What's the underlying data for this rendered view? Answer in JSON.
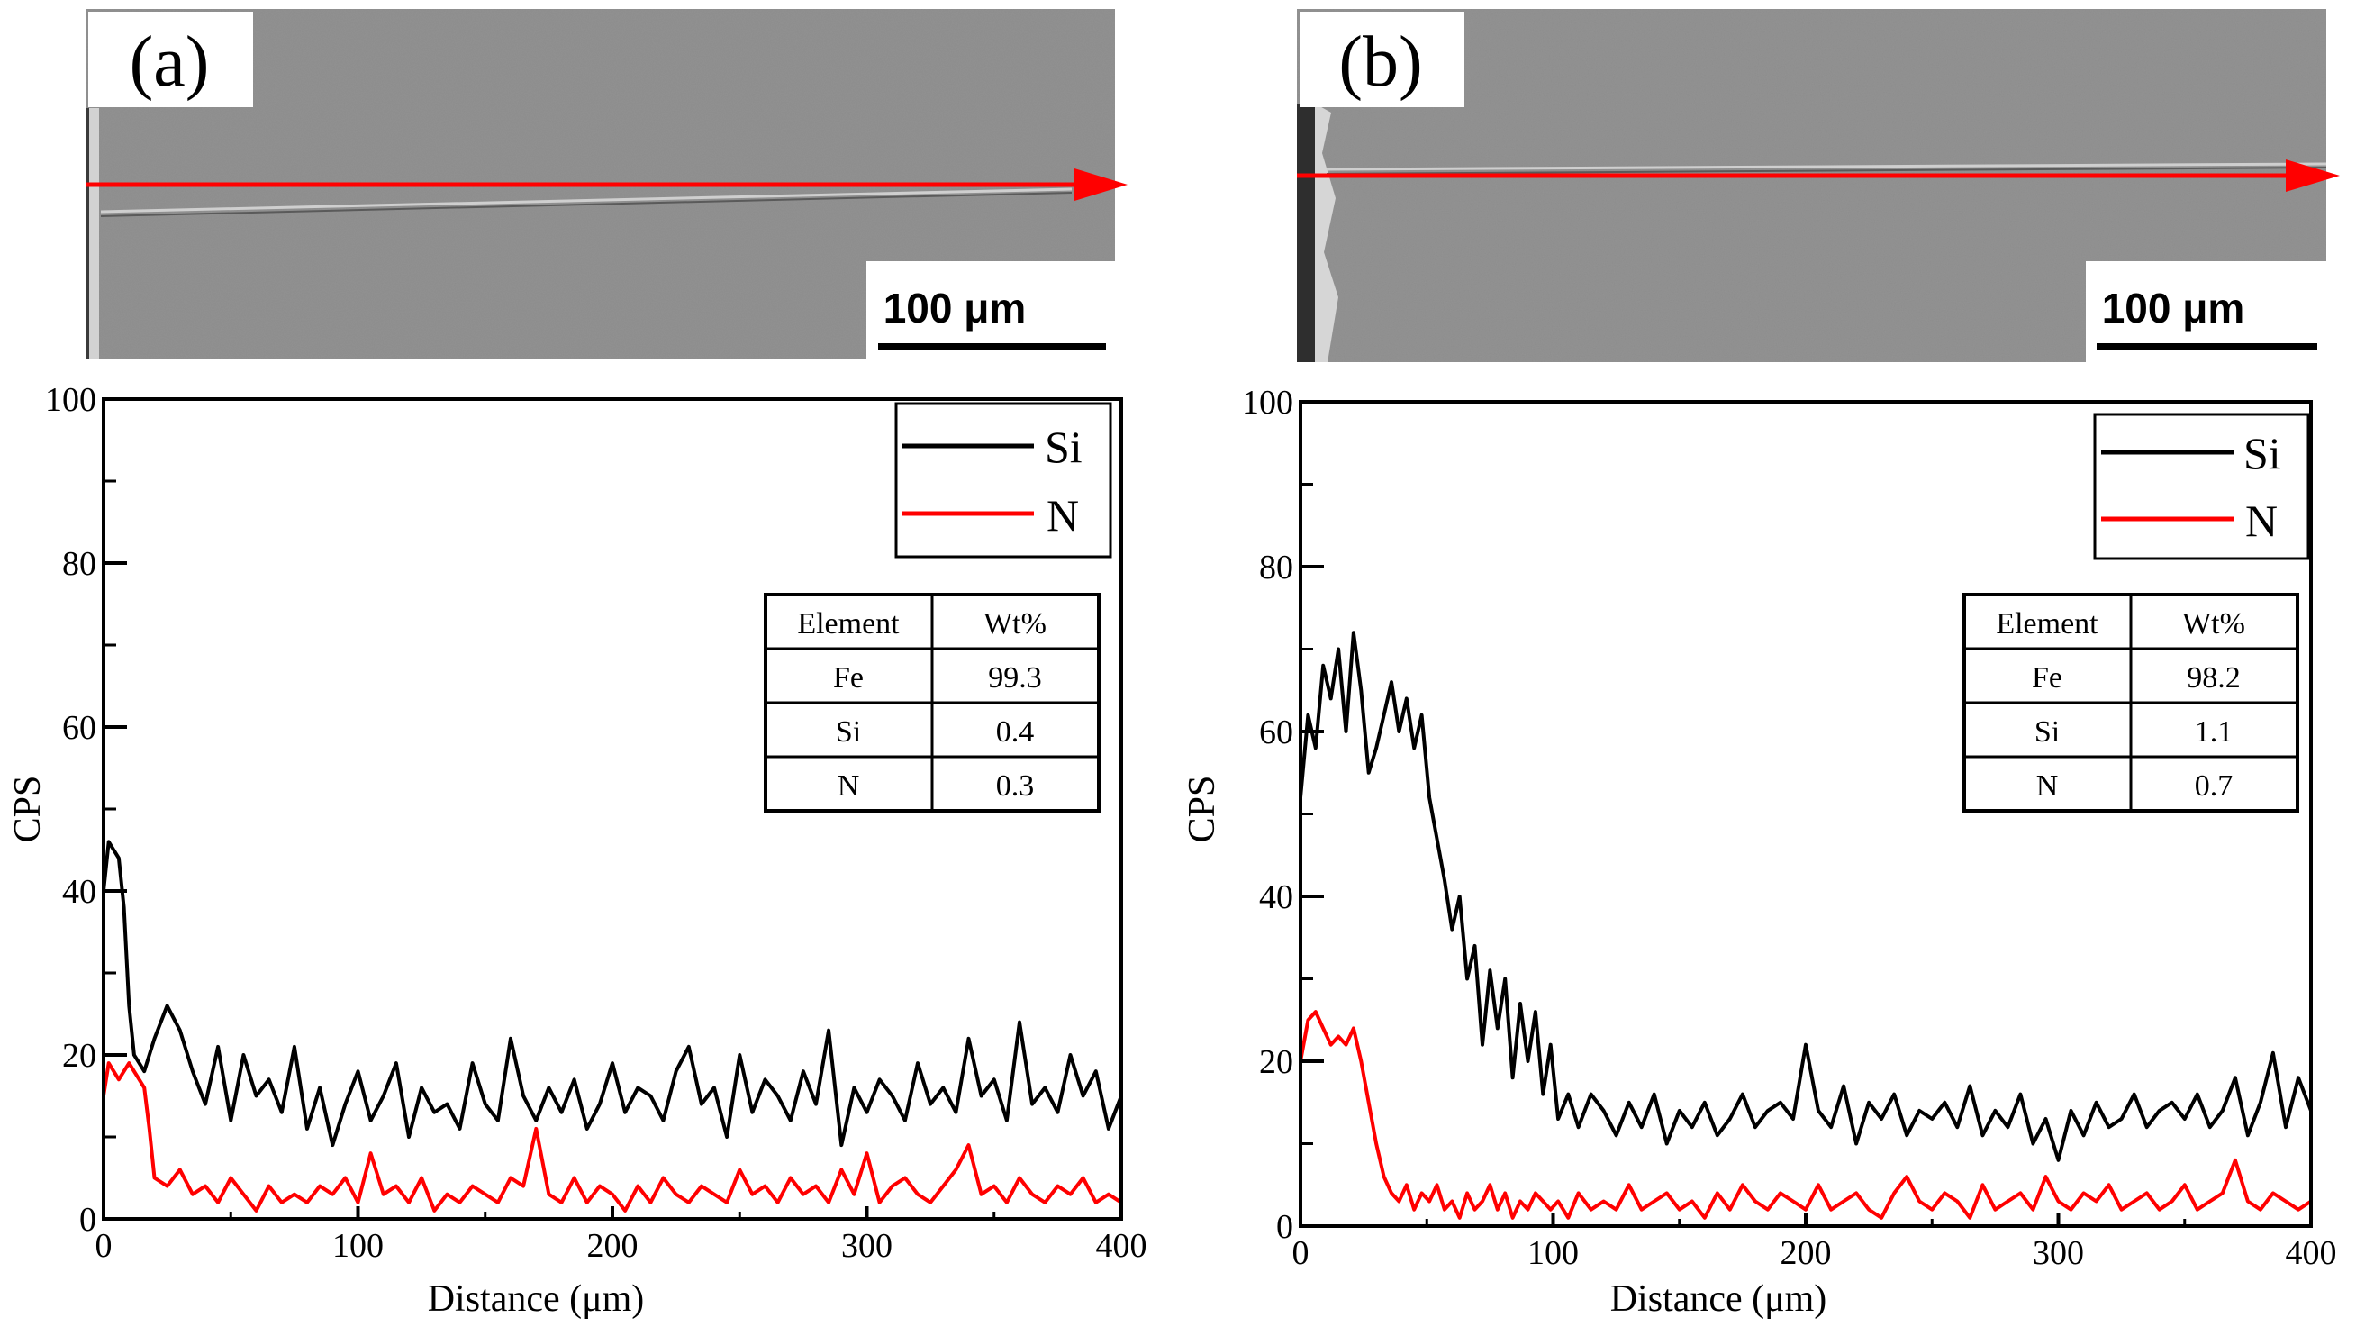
{
  "chart_data": [
    {
      "panel_label": "(a)",
      "type": "line",
      "scale_bar_label": "100 μm",
      "xlabel": "Distance (μm)",
      "ylabel": "CPS",
      "xlim": [
        0,
        400
      ],
      "ylim": [
        0,
        100
      ],
      "x_ticks": [
        0,
        100,
        200,
        300,
        400
      ],
      "y_ticks": [
        0,
        20,
        40,
        60,
        80,
        100
      ],
      "legend": {
        "placement": "top-right"
      },
      "series": [
        {
          "name": "Si",
          "color": "#000000",
          "x": [
            0,
            2,
            4,
            6,
            8,
            10,
            12,
            14,
            16,
            18,
            20,
            25,
            30,
            35,
            40,
            45,
            50,
            55,
            60,
            65,
            70,
            75,
            80,
            85,
            90,
            95,
            100,
            105,
            110,
            115,
            120,
            125,
            130,
            135,
            140,
            145,
            150,
            155,
            160,
            165,
            170,
            175,
            180,
            185,
            190,
            195,
            200,
            205,
            210,
            215,
            220,
            225,
            230,
            235,
            240,
            245,
            250,
            255,
            260,
            265,
            270,
            275,
            280,
            285,
            290,
            295,
            300,
            305,
            310,
            315,
            320,
            325,
            330,
            335,
            340,
            345,
            350,
            355,
            360,
            365,
            370,
            375,
            380,
            385,
            390,
            395,
            400
          ],
          "values": [
            40,
            46,
            45,
            44,
            38,
            26,
            20,
            19,
            18,
            20,
            22,
            26,
            23,
            18,
            14,
            21,
            12,
            20,
            15,
            17,
            13,
            21,
            11,
            16,
            9,
            14,
            18,
            12,
            15,
            19,
            10,
            16,
            13,
            14,
            11,
            19,
            14,
            12,
            22,
            15,
            12,
            16,
            13,
            17,
            11,
            14,
            19,
            13,
            16,
            15,
            12,
            18,
            21,
            14,
            16,
            10,
            20,
            13,
            17,
            15,
            12,
            18,
            14,
            23,
            9,
            16,
            13,
            17,
            15,
            12,
            19,
            14,
            16,
            13,
            22,
            15,
            17,
            12,
            24,
            14,
            16,
            13,
            20,
            15,
            18,
            11,
            15
          ]
        },
        {
          "name": "N",
          "color": "#ff0000",
          "x": [
            0,
            2,
            4,
            6,
            8,
            10,
            12,
            14,
            16,
            18,
            20,
            25,
            30,
            35,
            40,
            45,
            50,
            55,
            60,
            65,
            70,
            75,
            80,
            85,
            90,
            95,
            100,
            105,
            110,
            115,
            120,
            125,
            130,
            135,
            140,
            145,
            150,
            155,
            160,
            165,
            170,
            175,
            180,
            185,
            190,
            195,
            200,
            205,
            210,
            215,
            220,
            225,
            230,
            235,
            240,
            245,
            250,
            255,
            260,
            265,
            270,
            275,
            280,
            285,
            290,
            295,
            300,
            305,
            310,
            315,
            320,
            325,
            330,
            335,
            340,
            345,
            350,
            355,
            360,
            365,
            370,
            375,
            380,
            385,
            390,
            395,
            400
          ],
          "values": [
            15,
            19,
            18,
            17,
            18,
            19,
            18,
            17,
            16,
            11,
            5,
            4,
            6,
            3,
            4,
            2,
            5,
            3,
            1,
            4,
            2,
            3,
            2,
            4,
            3,
            5,
            2,
            8,
            3,
            4,
            2,
            5,
            1,
            3,
            2,
            4,
            3,
            2,
            5,
            4,
            11,
            3,
            2,
            5,
            2,
            4,
            3,
            1,
            4,
            2,
            5,
            3,
            2,
            4,
            3,
            2,
            6,
            3,
            4,
            2,
            5,
            3,
            4,
            2,
            6,
            3,
            8,
            2,
            4,
            5,
            3,
            2,
            4,
            6,
            9,
            3,
            4,
            2,
            5,
            3,
            2,
            4,
            3,
            5,
            2,
            3,
            2
          ]
        }
      ],
      "inset_table": {
        "headers": [
          "Element",
          "Wt%"
        ],
        "rows": [
          [
            "Fe",
            "99.3"
          ],
          [
            "Si",
            "0.4"
          ],
          [
            "N",
            "0.3"
          ]
        ]
      }
    },
    {
      "panel_label": "(b)",
      "type": "line",
      "scale_bar_label": "100 μm",
      "xlabel": "Distance (μm)",
      "ylabel": "CPS",
      "xlim": [
        0,
        400
      ],
      "ylim": [
        0,
        100
      ],
      "x_ticks": [
        0,
        100,
        200,
        300,
        400
      ],
      "y_ticks": [
        0,
        20,
        40,
        60,
        80,
        100
      ],
      "legend": {
        "placement": "top-right"
      },
      "series": [
        {
          "name": "Si",
          "color": "#000000",
          "x": [
            0,
            3,
            6,
            9,
            12,
            15,
            18,
            21,
            24,
            27,
            30,
            33,
            36,
            39,
            42,
            45,
            48,
            51,
            54,
            57,
            60,
            63,
            66,
            69,
            72,
            75,
            78,
            81,
            84,
            87,
            90,
            93,
            96,
            99,
            102,
            106,
            110,
            115,
            120,
            125,
            130,
            135,
            140,
            145,
            150,
            155,
            160,
            165,
            170,
            175,
            180,
            185,
            190,
            195,
            200,
            205,
            210,
            215,
            220,
            225,
            230,
            235,
            240,
            245,
            250,
            255,
            260,
            265,
            270,
            275,
            280,
            285,
            290,
            295,
            300,
            305,
            310,
            315,
            320,
            325,
            330,
            335,
            340,
            345,
            350,
            355,
            360,
            365,
            370,
            375,
            380,
            385,
            390,
            395,
            400
          ],
          "values": [
            52,
            62,
            58,
            68,
            64,
            70,
            60,
            72,
            65,
            55,
            58,
            62,
            66,
            60,
            64,
            58,
            62,
            52,
            47,
            42,
            36,
            40,
            30,
            34,
            22,
            31,
            24,
            30,
            18,
            27,
            20,
            26,
            16,
            22,
            13,
            16,
            12,
            16,
            14,
            11,
            15,
            12,
            16,
            10,
            14,
            12,
            15,
            11,
            13,
            16,
            12,
            14,
            15,
            13,
            22,
            14,
            12,
            17,
            10,
            15,
            13,
            16,
            11,
            14,
            13,
            15,
            12,
            17,
            11,
            14,
            12,
            16,
            10,
            13,
            8,
            14,
            11,
            15,
            12,
            13,
            16,
            12,
            14,
            15,
            13,
            16,
            12,
            14,
            18,
            11,
            15,
            21,
            12,
            18,
            14
          ]
        },
        {
          "name": "N",
          "color": "#ff0000",
          "x": [
            0,
            3,
            6,
            9,
            12,
            15,
            18,
            21,
            24,
            27,
            30,
            33,
            36,
            39,
            42,
            45,
            48,
            51,
            54,
            57,
            60,
            63,
            66,
            69,
            72,
            75,
            78,
            81,
            84,
            87,
            90,
            93,
            96,
            99,
            102,
            106,
            110,
            115,
            120,
            125,
            130,
            135,
            140,
            145,
            150,
            155,
            160,
            165,
            170,
            175,
            180,
            185,
            190,
            195,
            200,
            205,
            210,
            215,
            220,
            225,
            230,
            235,
            240,
            245,
            250,
            255,
            260,
            265,
            270,
            275,
            280,
            285,
            290,
            295,
            300,
            305,
            310,
            315,
            320,
            325,
            330,
            335,
            340,
            345,
            350,
            355,
            360,
            365,
            370,
            375,
            380,
            385,
            390,
            395,
            400
          ],
          "values": [
            20,
            25,
            26,
            24,
            22,
            23,
            22,
            24,
            20,
            15,
            10,
            6,
            4,
            3,
            5,
            2,
            4,
            3,
            5,
            2,
            3,
            1,
            4,
            2,
            3,
            5,
            2,
            4,
            1,
            3,
            2,
            4,
            3,
            2,
            3,
            1,
            4,
            2,
            3,
            2,
            5,
            2,
            3,
            4,
            2,
            3,
            1,
            4,
            2,
            5,
            3,
            2,
            4,
            3,
            2,
            5,
            2,
            3,
            4,
            2,
            1,
            4,
            6,
            3,
            2,
            4,
            3,
            1,
            5,
            2,
            3,
            4,
            2,
            6,
            3,
            2,
            4,
            3,
            5,
            2,
            3,
            4,
            2,
            3,
            5,
            2,
            3,
            4,
            8,
            3,
            2,
            4,
            3,
            2,
            3
          ]
        }
      ],
      "inset_table": {
        "headers": [
          "Element",
          "Wt%"
        ],
        "rows": [
          [
            "Fe",
            "98.2"
          ],
          [
            "Si",
            "1.1"
          ],
          [
            "N",
            "0.7"
          ]
        ]
      }
    }
  ]
}
